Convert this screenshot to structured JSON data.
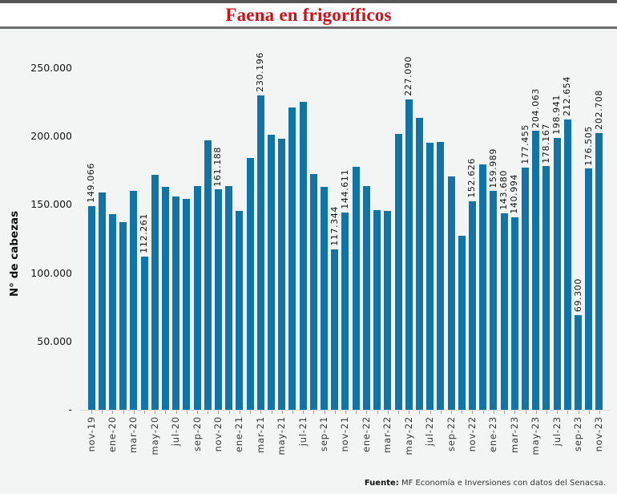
{
  "title": "Faena en frigoríficos",
  "source": {
    "prefix": "Fuente:",
    "text": "MF Economía e Inversiones con datos del Senacsa."
  },
  "colors": {
    "bar": "#1174a6",
    "title_red": "#cb1117",
    "chart_bg": "#f3f4f4"
  },
  "chart_data": {
    "type": "bar",
    "title": "Faena en frigoríficos",
    "xlabel": "",
    "ylabel": "N° de cabezas",
    "ylim": [
      0,
      265000
    ],
    "grid": false,
    "legend": "none",
    "y_ticks": [
      {
        "label": "250.000",
        "value": 250000
      },
      {
        "label": "200.000",
        "value": 200000
      },
      {
        "label": "150.000",
        "value": 150000
      },
      {
        "label": "100.000",
        "value": 100000
      },
      {
        "label": "50.000",
        "value": 50000
      },
      {
        "label": "-",
        "value": 0
      }
    ],
    "x_tick_every": 2,
    "points": [
      {
        "month": "nov-19",
        "value": 149066,
        "label": "149.066"
      },
      {
        "month": "dic-19",
        "value": 159000,
        "label": null
      },
      {
        "month": "ene-20",
        "value": 143400,
        "label": null
      },
      {
        "month": "feb-20",
        "value": 137500,
        "label": null
      },
      {
        "month": "mar-20",
        "value": 160000,
        "label": null
      },
      {
        "month": "abr-20",
        "value": 112261,
        "label": "112.261"
      },
      {
        "month": "may-20",
        "value": 172000,
        "label": null
      },
      {
        "month": "jun-20",
        "value": 163300,
        "label": null
      },
      {
        "month": "jul-20",
        "value": 156200,
        "label": null
      },
      {
        "month": "ago-20",
        "value": 154400,
        "label": null
      },
      {
        "month": "sep-20",
        "value": 164000,
        "label": null
      },
      {
        "month": "oct-20",
        "value": 197300,
        "label": null
      },
      {
        "month": "nov-20",
        "value": 161188,
        "label": "161.188"
      },
      {
        "month": "dic-20",
        "value": 164000,
        "label": null
      },
      {
        "month": "ene-21",
        "value": 145500,
        "label": null
      },
      {
        "month": "feb-21",
        "value": 184000,
        "label": null
      },
      {
        "month": "mar-21",
        "value": 230196,
        "label": "230.196"
      },
      {
        "month": "abr-21",
        "value": 201500,
        "label": null
      },
      {
        "month": "may-21",
        "value": 198600,
        "label": null
      },
      {
        "month": "jun-21",
        "value": 221000,
        "label": null
      },
      {
        "month": "jul-21",
        "value": 225200,
        "label": null
      },
      {
        "month": "ago-21",
        "value": 172800,
        "label": null
      },
      {
        "month": "sep-21",
        "value": 163300,
        "label": null
      },
      {
        "month": "oct-21",
        "value": 117344,
        "label": "117.344"
      },
      {
        "month": "nov-21",
        "value": 144611,
        "label": "144.611"
      },
      {
        "month": "dic-21",
        "value": 177700,
        "label": null
      },
      {
        "month": "ene-22",
        "value": 163800,
        "label": null
      },
      {
        "month": "feb-22",
        "value": 146300,
        "label": null
      },
      {
        "month": "mar-22",
        "value": 145700,
        "label": null
      },
      {
        "month": "abr-22",
        "value": 201900,
        "label": null
      },
      {
        "month": "may-22",
        "value": 227090,
        "label": "227.090"
      },
      {
        "month": "jun-22",
        "value": 213700,
        "label": null
      },
      {
        "month": "jul-22",
        "value": 195500,
        "label": null
      },
      {
        "month": "ago-22",
        "value": 196100,
        "label": null
      },
      {
        "month": "sep-22",
        "value": 170900,
        "label": null
      },
      {
        "month": "oct-22",
        "value": 127500,
        "label": null
      },
      {
        "month": "nov-22",
        "value": 152626,
        "label": "152.626"
      },
      {
        "month": "dic-22",
        "value": 179300,
        "label": null
      },
      {
        "month": "ene-23",
        "value": 159989,
        "label": "159.989"
      },
      {
        "month": "feb-23",
        "value": 143680,
        "label": "143.680"
      },
      {
        "month": "mar-23",
        "value": 140994,
        "label": "140.994"
      },
      {
        "month": "abr-23",
        "value": 177455,
        "label": "177.455"
      },
      {
        "month": "may-23",
        "value": 204063,
        "label": "204.063"
      },
      {
        "month": "jun-23",
        "value": 178167,
        "label": "178.167"
      },
      {
        "month": "jul-23",
        "value": 198941,
        "label": "198.941"
      },
      {
        "month": "ago-23",
        "value": 212654,
        "label": "212.654"
      },
      {
        "month": "sep-23",
        "value": 69300,
        "label": "69.300"
      },
      {
        "month": "oct-23",
        "value": 176505,
        "label": "176.505"
      },
      {
        "month": "nov-23",
        "value": 202708,
        "label": "202.708"
      }
    ]
  }
}
